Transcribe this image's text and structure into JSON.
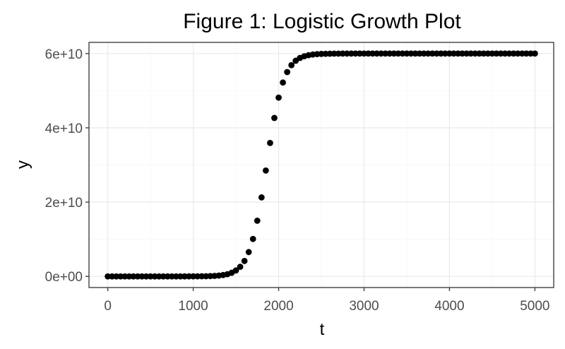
{
  "chart_data": {
    "type": "scatter",
    "title": "Figure 1: Logistic Growth Plot",
    "xlabel": "t",
    "ylabel": "y",
    "xlim": [
      -220,
      5220
    ],
    "ylim": [
      -3000000000,
      63000000000
    ],
    "x_ticks": [
      0,
      1000,
      2000,
      3000,
      4000,
      5000
    ],
    "x_tick_labels": [
      "0",
      "1000",
      "2000",
      "3000",
      "4000",
      "5000"
    ],
    "y_ticks": [
      0,
      20000000000,
      40000000000,
      60000000000
    ],
    "y_tick_labels": [
      "0e+00",
      "2e+10",
      "4e+10",
      "6e+10"
    ],
    "grid": true,
    "point_color": "#000000",
    "logistic": {
      "K": 60000000000,
      "r": 0.01,
      "t0": 1860,
      "t_start": 0,
      "t_end": 5000,
      "t_step": 50
    }
  }
}
